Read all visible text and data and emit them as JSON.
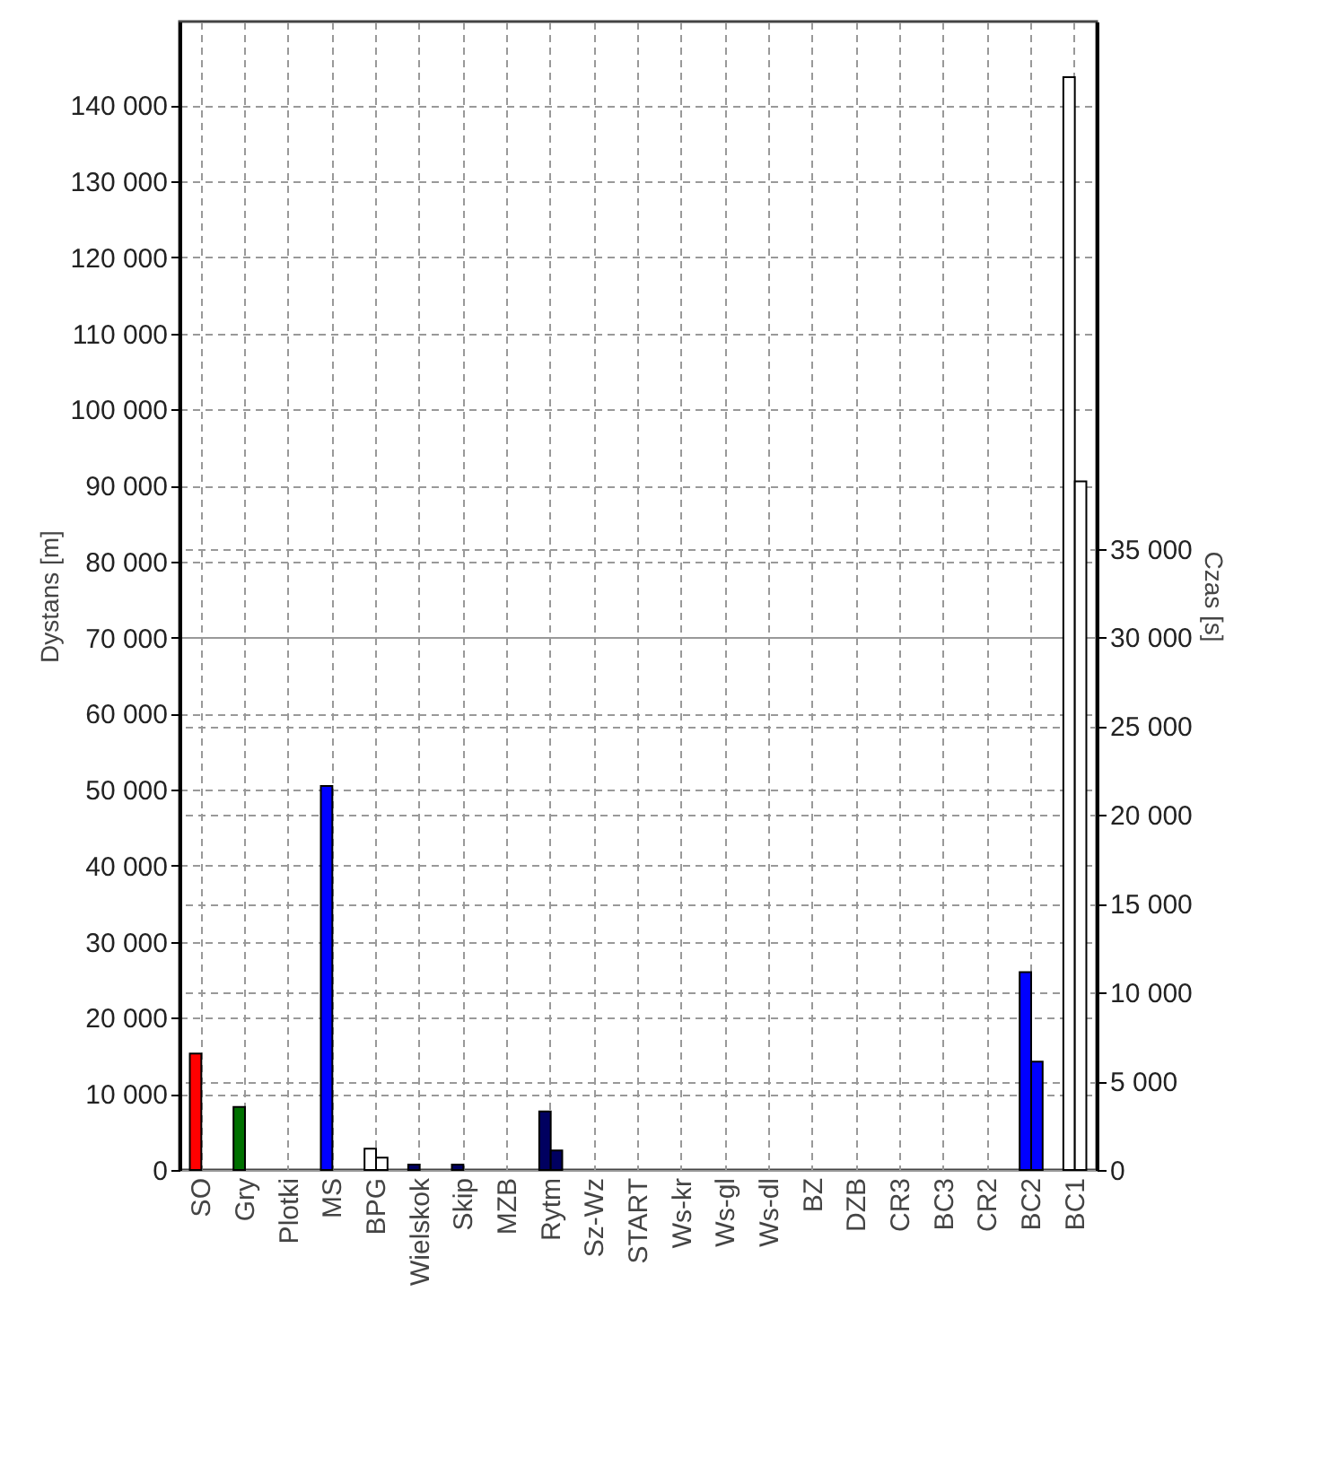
{
  "chart_data": {
    "type": "bar",
    "xlabel": null,
    "ylabel": "Dystans [m]",
    "y2label": "Czas [s]",
    "categories": [
      "SO",
      "Gry",
      "Plotki",
      "MS",
      "BPG",
      "Wielskok",
      "Skip",
      "MZB",
      "Rytm",
      "Sz-Wz",
      "START",
      "Ws-kr",
      "Ws-gl",
      "Ws-dl",
      "BZ",
      "DZB",
      "CR3",
      "BC3",
      "CR2",
      "BC2",
      "BC1"
    ],
    "series": [
      {
        "values": [
          15300,
          8300,
          null,
          50500,
          2800,
          700,
          700,
          null,
          7700,
          null,
          null,
          null,
          null,
          null,
          null,
          null,
          null,
          null,
          null,
          26000,
          143700
        ],
        "colors": [
          "#ff0000",
          "#007000",
          "#ffffff",
          "#0000ff",
          "#ffffff",
          "#000060",
          "#000060",
          "#ffffff",
          "#000060",
          "#ffffff",
          "#ffffff",
          "#ffffff",
          "#ffffff",
          "#ffffff",
          "#ffffff",
          "#ffffff",
          "#ffffff",
          "#ffffff",
          "#ffffff",
          "#0000ff",
          "#ffffff"
        ]
      },
      {
        "axis": "y2",
        "values": [
          null,
          null,
          null,
          null,
          700,
          null,
          null,
          null,
          1100,
          null,
          null,
          null,
          null,
          null,
          null,
          null,
          null,
          null,
          null,
          6100,
          38800
        ],
        "colors": [
          "#ff0000",
          "#007000",
          "#ffffff",
          "#0000ff",
          "#ffffff",
          "#000060",
          "#000060",
          "#ffffff",
          "#000060",
          "#ffffff",
          "#ffffff",
          "#ffffff",
          "#ffffff",
          "#ffffff",
          "#ffffff",
          "#ffffff",
          "#ffffff",
          "#ffffff",
          "#ffffff",
          "#0000ff",
          "#ffffff"
        ]
      }
    ],
    "ylim": [
      0,
      151000
    ],
    "yticks": [
      {
        "value": 0,
        "label": "0"
      },
      {
        "value": 10000,
        "label": "10 000"
      },
      {
        "value": 20000,
        "label": "20 000"
      },
      {
        "value": 30000,
        "label": "30 000"
      },
      {
        "value": 40000,
        "label": "40 000"
      },
      {
        "value": 50000,
        "label": "50 000"
      },
      {
        "value": 60000,
        "label": "60 000"
      },
      {
        "value": 70000,
        "label": "70 000"
      },
      {
        "value": 80000,
        "label": "80 000"
      },
      {
        "value": 90000,
        "label": "90 000"
      },
      {
        "value": 100000,
        "label": "100 000"
      },
      {
        "value": 110000,
        "label": "110 000"
      },
      {
        "value": 120000,
        "label": "120 000"
      },
      {
        "value": 130000,
        "label": "130 000"
      },
      {
        "value": 140000,
        "label": "140 000"
      }
    ],
    "y2lim": [
      0,
      64700
    ],
    "y2ticks": [
      {
        "value": 0,
        "label": "0"
      },
      {
        "value": 5000,
        "label": "5 000"
      },
      {
        "value": 10000,
        "label": "10 000"
      },
      {
        "value": 15000,
        "label": "15 000"
      },
      {
        "value": 20000,
        "label": "20 000"
      },
      {
        "value": 25000,
        "label": "25 000"
      },
      {
        "value": 30000,
        "label": "30 000"
      },
      {
        "value": 35000,
        "label": "35 000"
      }
    ],
    "grid": true
  }
}
